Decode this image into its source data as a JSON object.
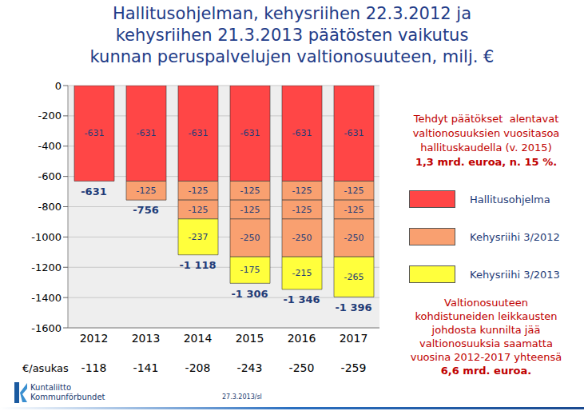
{
  "chart_data": {
    "type": "bar",
    "title": [
      "Hallitusohjelman, kehysriihen 22.3.2012 ja",
      "kehysriihen 21.3.2013 päätösten vaikutus",
      "kunnan peruspalvelujen valtionosuuteen, milj. €"
    ],
    "categories": [
      "2012",
      "2013",
      "2014",
      "2015",
      "2016",
      "2017"
    ],
    "series": [
      {
        "name": "Hallitusohjelma",
        "color": "#ff4646",
        "values": [
          -631,
          -631,
          -631,
          -631,
          -631,
          -631
        ]
      },
      {
        "name": "Kehysriihi 3/2012",
        "color": "#f9a070",
        "values": [
          null,
          -125,
          -125,
          -125,
          -125,
          -125
        ]
      },
      {
        "name": "Kehysriihi 3/2012",
        "color": "#f9a070",
        "values": [
          null,
          null,
          -125,
          -125,
          -125,
          -125
        ]
      },
      {
        "name": "Kehysriihi 3/2012",
        "color": "#f9a070",
        "values": [
          null,
          null,
          null,
          -250,
          -250,
          -250
        ]
      },
      {
        "name": "Kehysriihi 3/2013",
        "color": "#ffff3c",
        "values": [
          null,
          null,
          -237,
          -175,
          -215,
          -265
        ]
      }
    ],
    "totals": {
      "values": [
        -631,
        -756,
        -1118,
        -1306,
        -1346,
        -1396
      ],
      "value_labels": [
        "-631",
        "-756",
        "-1 118",
        "-1 306",
        "-1 346",
        "-1 396"
      ]
    },
    "per_capita": {
      "label": "€/asukas",
      "values": [
        -118,
        -141,
        -208,
        -243,
        -250,
        -259
      ]
    },
    "ylim": [
      -1600,
      0
    ],
    "yticks": [
      0,
      -200,
      -400,
      -600,
      -800,
      -1000,
      -1200,
      -1400,
      -1600
    ],
    "stacked": true,
    "data_labels": true,
    "grid": true,
    "legend": "right",
    "annotations": [
      {
        "lines": [
          "Tehdyt päätökset  alentavat",
          "valtionosuuksien vuositasoa",
          "hallituskaudella (v. 2015)"
        ],
        "bold": "1,3 mrd. euroa, n. 15 %."
      },
      {
        "lines": [
          "Valtionosuuteen",
          "kohdistuneiden leikkausten",
          "johdosta kunnilta jää",
          "valtionosuuksia saamatta",
          "vuosina 2012-2017 yhteensä"
        ],
        "bold": "6,6 mrd. euroa."
      }
    ],
    "footer": {
      "logo": [
        "Kuntaliitto",
        "Kommunförbundet"
      ],
      "date": "27.3.2013/sl"
    }
  }
}
